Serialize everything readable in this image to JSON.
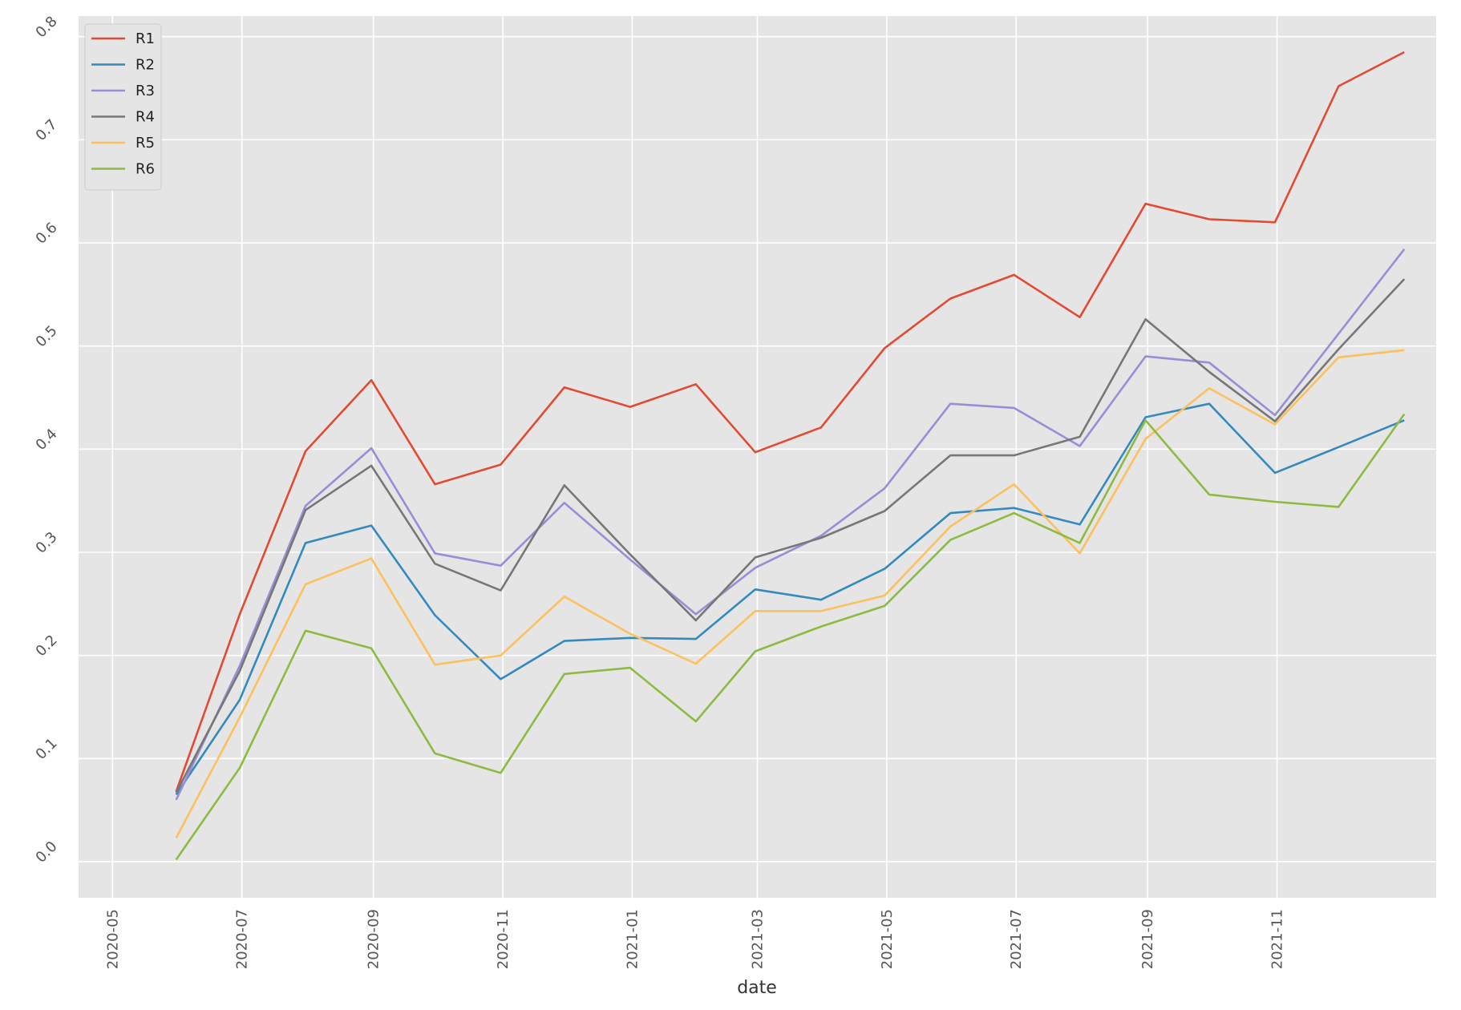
{
  "chart_data": {
    "type": "line",
    "xlabel": "date",
    "ylabel": "",
    "x": [
      "2020-05-31",
      "2020-06-30",
      "2020-07-31",
      "2020-08-31",
      "2020-09-30",
      "2020-10-31",
      "2020-11-30",
      "2020-12-31",
      "2021-01-31",
      "2021-02-28",
      "2021-03-31",
      "2021-04-30",
      "2021-05-31",
      "2021-06-30",
      "2021-07-31",
      "2021-08-31",
      "2021-09-30",
      "2021-10-31",
      "2021-11-30",
      "2021-12-31"
    ],
    "xlim": [
      "2020-04-15",
      "2022-01-15"
    ],
    "ylim": [
      -0.035,
      0.82
    ],
    "x_ticks": [
      "2020-05",
      "2020-07",
      "2020-09",
      "2020-11",
      "2021-01",
      "2021-03",
      "2021-05",
      "2021-07",
      "2021-09",
      "2021-11"
    ],
    "y_ticks": [
      "0.0",
      "0.1",
      "0.2",
      "0.3",
      "0.4",
      "0.5",
      "0.6",
      "0.7",
      "0.8"
    ],
    "grid": true,
    "legend_position": "top-left",
    "series": [
      {
        "name": "R1",
        "color": "#E24A33",
        "values": [
          0.068,
          0.24,
          0.398,
          0.467,
          0.366,
          0.385,
          0.46,
          0.441,
          0.463,
          0.397,
          0.421,
          0.498,
          0.546,
          0.569,
          0.528,
          0.638,
          0.623,
          0.62,
          0.752,
          0.785
        ]
      },
      {
        "name": "R2",
        "color": "#348ABD",
        "values": [
          0.065,
          0.157,
          0.309,
          0.326,
          0.239,
          0.177,
          0.214,
          0.217,
          0.216,
          0.264,
          0.254,
          0.284,
          0.338,
          0.343,
          0.327,
          0.431,
          0.444,
          0.377,
          0.402,
          0.428
        ]
      },
      {
        "name": "R3",
        "color": "#988ED5",
        "values": [
          0.06,
          0.19,
          0.345,
          0.401,
          0.299,
          0.287,
          0.348,
          0.293,
          0.24,
          0.285,
          0.316,
          0.362,
          0.444,
          0.44,
          0.403,
          0.49,
          0.484,
          0.433,
          0.512,
          0.594
        ]
      },
      {
        "name": "R4",
        "color": "#777777",
        "values": [
          0.067,
          0.185,
          0.341,
          0.384,
          0.289,
          0.263,
          0.365,
          0.298,
          0.234,
          0.295,
          0.314,
          0.34,
          0.394,
          0.394,
          0.412,
          0.526,
          0.475,
          0.427,
          0.497,
          0.565
        ]
      },
      {
        "name": "R5",
        "color": "#FBC15E",
        "values": [
          0.023,
          0.14,
          0.269,
          0.294,
          0.191,
          0.2,
          0.257,
          0.221,
          0.192,
          0.243,
          0.243,
          0.258,
          0.325,
          0.366,
          0.299,
          0.41,
          0.459,
          0.424,
          0.489,
          0.496
        ]
      },
      {
        "name": "R6",
        "color": "#8EBA42",
        "values": [
          0.002,
          0.091,
          0.224,
          0.207,
          0.105,
          0.086,
          0.182,
          0.188,
          0.136,
          0.204,
          0.228,
          0.248,
          0.312,
          0.338,
          0.309,
          0.428,
          0.356,
          0.349,
          0.344,
          0.434
        ]
      }
    ]
  }
}
